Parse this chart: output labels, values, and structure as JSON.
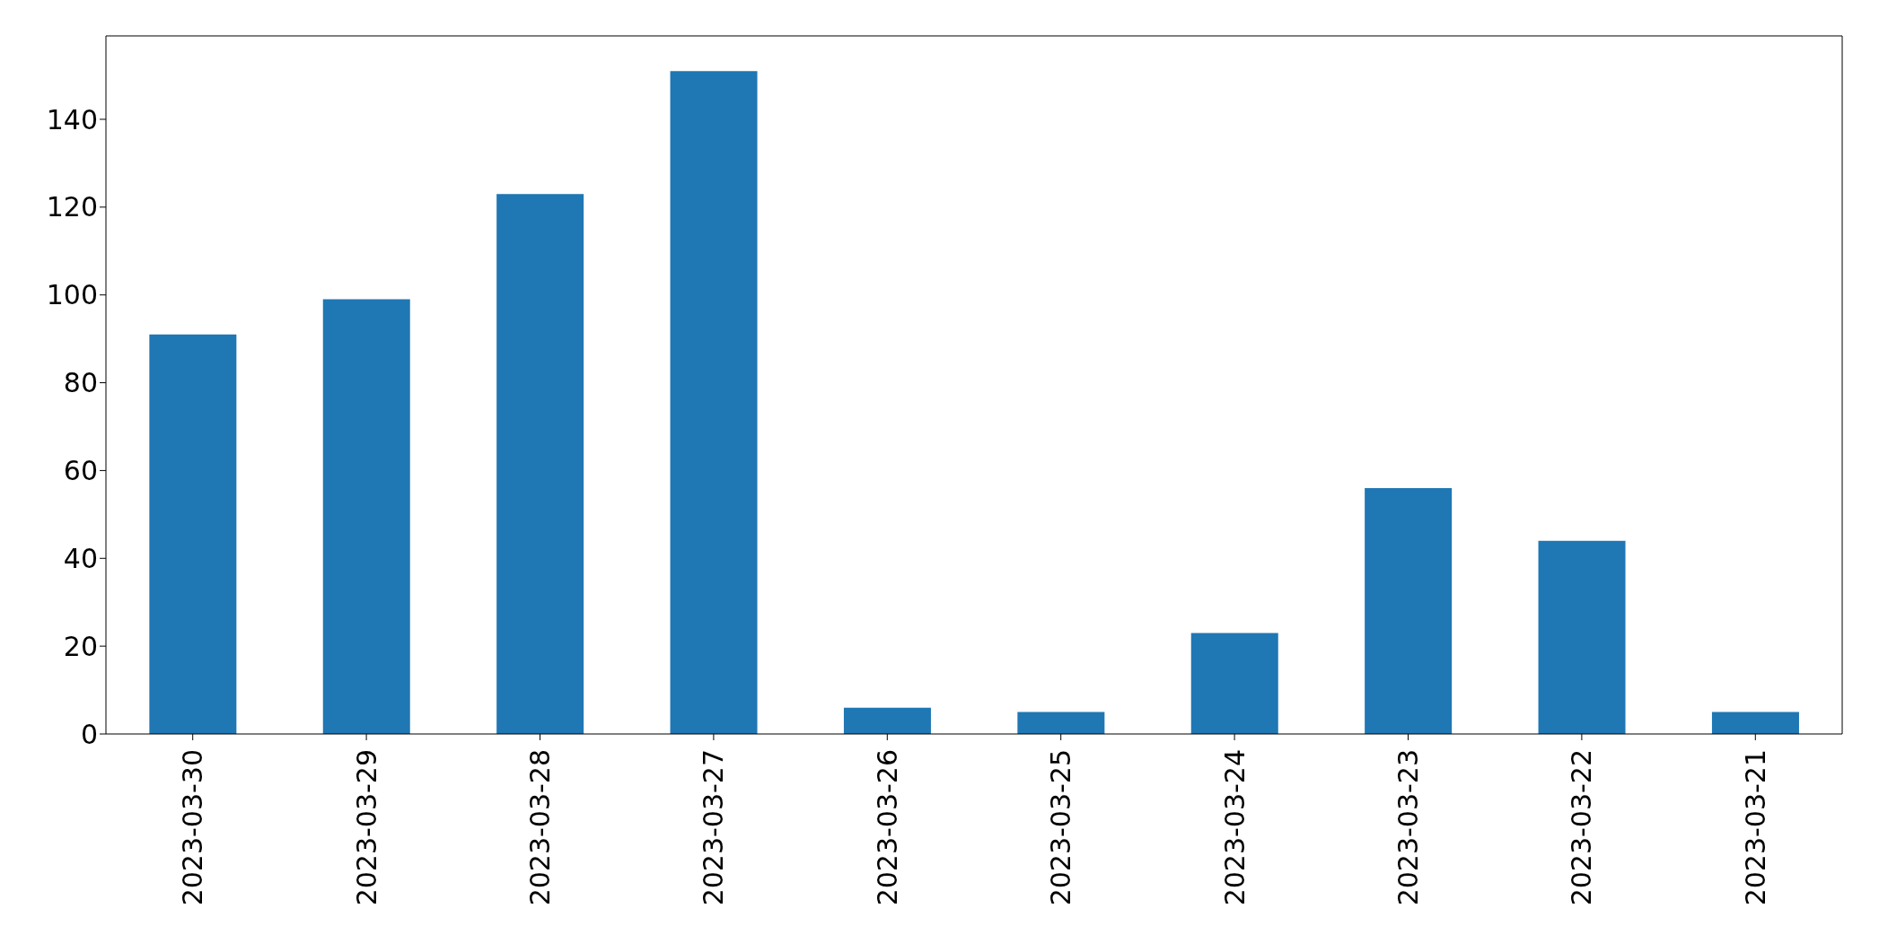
{
  "chart_data": {
    "type": "bar",
    "categories": [
      "2023-03-30",
      "2023-03-29",
      "2023-03-28",
      "2023-03-27",
      "2023-03-26",
      "2023-03-25",
      "2023-03-24",
      "2023-03-23",
      "2023-03-22",
      "2023-03-21"
    ],
    "values": [
      91,
      99,
      123,
      151,
      6,
      5,
      23,
      56,
      44,
      5
    ],
    "color": "#1f77b4",
    "ylim": [
      0,
      159
    ],
    "yticks": [
      0,
      20,
      40,
      60,
      80,
      100,
      120,
      140
    ],
    "grid": false,
    "legend": false
  }
}
